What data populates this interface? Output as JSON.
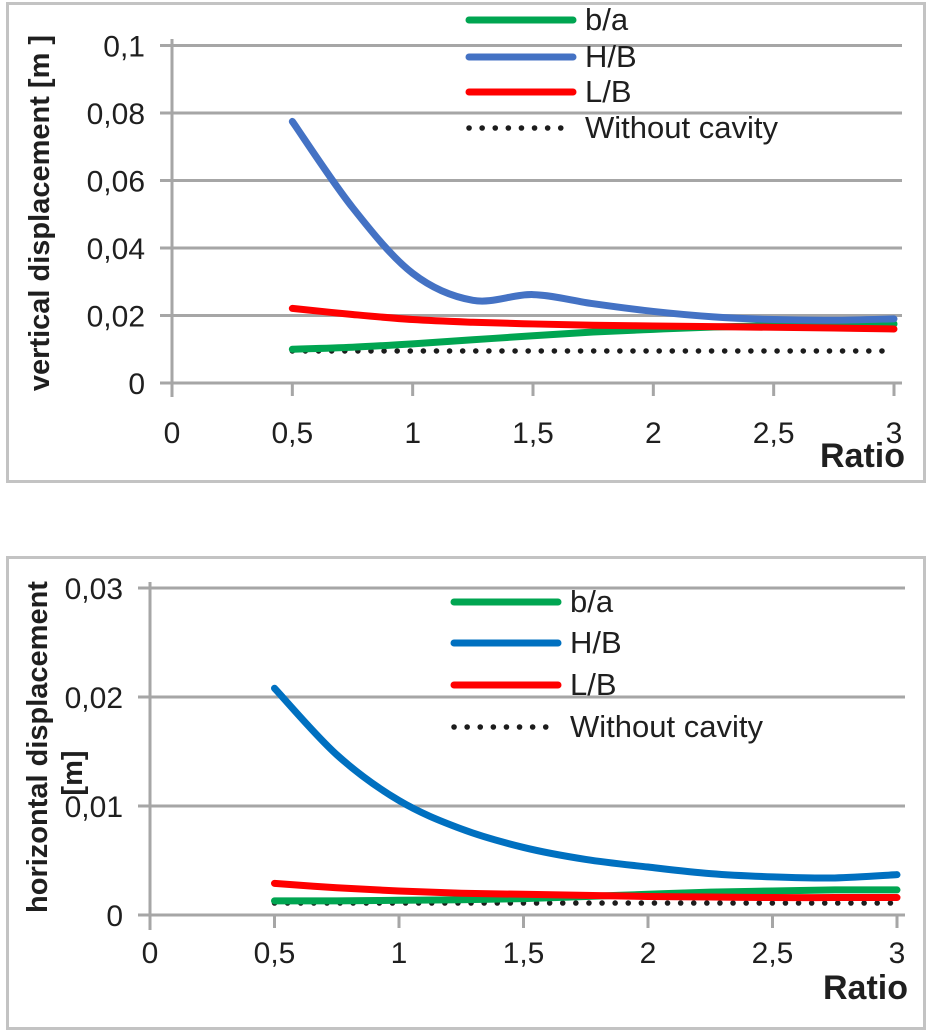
{
  "chart_data": [
    {
      "type": "line",
      "title": "",
      "xlabel": "Ratio",
      "ylabel": "vertical displacement [m ]",
      "xlim": [
        0,
        3
      ],
      "ylim": [
        0,
        0.1
      ],
      "grid": true,
      "legend_position": "top-right-inside",
      "x_ticks": [
        "0",
        "0,5",
        "1",
        "1,5",
        "2",
        "2,5",
        "3"
      ],
      "x_tick_values": [
        0,
        0.5,
        1,
        1.5,
        2,
        2.5,
        3
      ],
      "y_ticks": [
        "0",
        "0,02",
        "0,04",
        "0,06",
        "0,08",
        "0,1"
      ],
      "y_tick_values": [
        0,
        0.02,
        0.04,
        0.06,
        0.08,
        0.1
      ],
      "x": [
        0.5,
        0.75,
        1,
        1.25,
        1.5,
        1.75,
        2,
        2.25,
        2.5,
        2.75,
        3
      ],
      "series": [
        {
          "name": "b/a",
          "color": "#00A551",
          "style": "solid",
          "values": [
            0.01,
            0.0106,
            0.0116,
            0.0128,
            0.014,
            0.0151,
            0.0159,
            0.0166,
            0.017,
            0.0173,
            0.0175
          ]
        },
        {
          "name": "H/B",
          "color": "#4472C4",
          "style": "solid",
          "values": [
            0.0775,
            0.052,
            0.0325,
            0.0245,
            0.0262,
            0.0235,
            0.0212,
            0.0196,
            0.0188,
            0.0186,
            0.019
          ]
        },
        {
          "name": "L/B",
          "color": "#FF0000",
          "style": "solid",
          "values": [
            0.0221,
            0.0203,
            0.0188,
            0.018,
            0.0175,
            0.0171,
            0.0169,
            0.0167,
            0.0165,
            0.0163,
            0.016
          ]
        },
        {
          "name": "Without cavity",
          "color": "#1c1c1c",
          "style": "dotted",
          "values": [
            0.0095,
            0.0095,
            0.0095,
            0.0095,
            0.0095,
            0.0095,
            0.0095,
            0.0095,
            0.0095,
            0.0095,
            0.0095
          ]
        }
      ],
      "colors": {
        "grid": "#a6a6a6",
        "axis": "#a6a6a6",
        "text": "#1f1f1f"
      }
    },
    {
      "type": "line",
      "title": "",
      "xlabel": "Ratio",
      "ylabel": "horizontal displacement",
      "ylabel_unit": "[m]",
      "xlim": [
        0,
        3
      ],
      "ylim": [
        0,
        0.03
      ],
      "grid": true,
      "legend_position": "top-right-inside",
      "x_ticks": [
        "0",
        "0,5",
        "1",
        "1,5",
        "2",
        "2,5",
        "3"
      ],
      "x_tick_values": [
        0,
        0.5,
        1,
        1.5,
        2,
        2.5,
        3
      ],
      "y_ticks": [
        "0",
        "0,01",
        "0,02",
        "0,03"
      ],
      "y_tick_values": [
        0,
        0.01,
        0.02,
        0.03
      ],
      "x": [
        0.5,
        0.75,
        1,
        1.25,
        1.5,
        1.75,
        2,
        2.25,
        2.5,
        2.75,
        3
      ],
      "series": [
        {
          "name": "b/a",
          "color": "#00A551",
          "style": "solid",
          "values": [
            0.0013,
            0.0013,
            0.00135,
            0.0014,
            0.0015,
            0.0017,
            0.0019,
            0.0021,
            0.0022,
            0.0023,
            0.0023
          ]
        },
        {
          "name": "H/B",
          "color": "#0070C0",
          "style": "solid",
          "values": [
            0.0208,
            0.0147,
            0.0105,
            0.0079,
            0.0062,
            0.0051,
            0.0044,
            0.0038,
            0.0035,
            0.0034,
            0.0037
          ]
        },
        {
          "name": "L/B",
          "color": "#FF0000",
          "style": "solid",
          "values": [
            0.0029,
            0.0025,
            0.0022,
            0.002,
            0.0019,
            0.0018,
            0.0017,
            0.00165,
            0.0016,
            0.0016,
            0.0016
          ]
        },
        {
          "name": "Without cavity",
          "color": "#1c1c1c",
          "style": "dotted",
          "values": [
            0.0011,
            0.0011,
            0.0011,
            0.0011,
            0.0011,
            0.0011,
            0.0011,
            0.0011,
            0.0011,
            0.0011,
            0.0011
          ]
        }
      ],
      "colors": {
        "grid": "#a6a6a6",
        "axis": "#a6a6a6",
        "text": "#1f1f1f"
      }
    }
  ]
}
